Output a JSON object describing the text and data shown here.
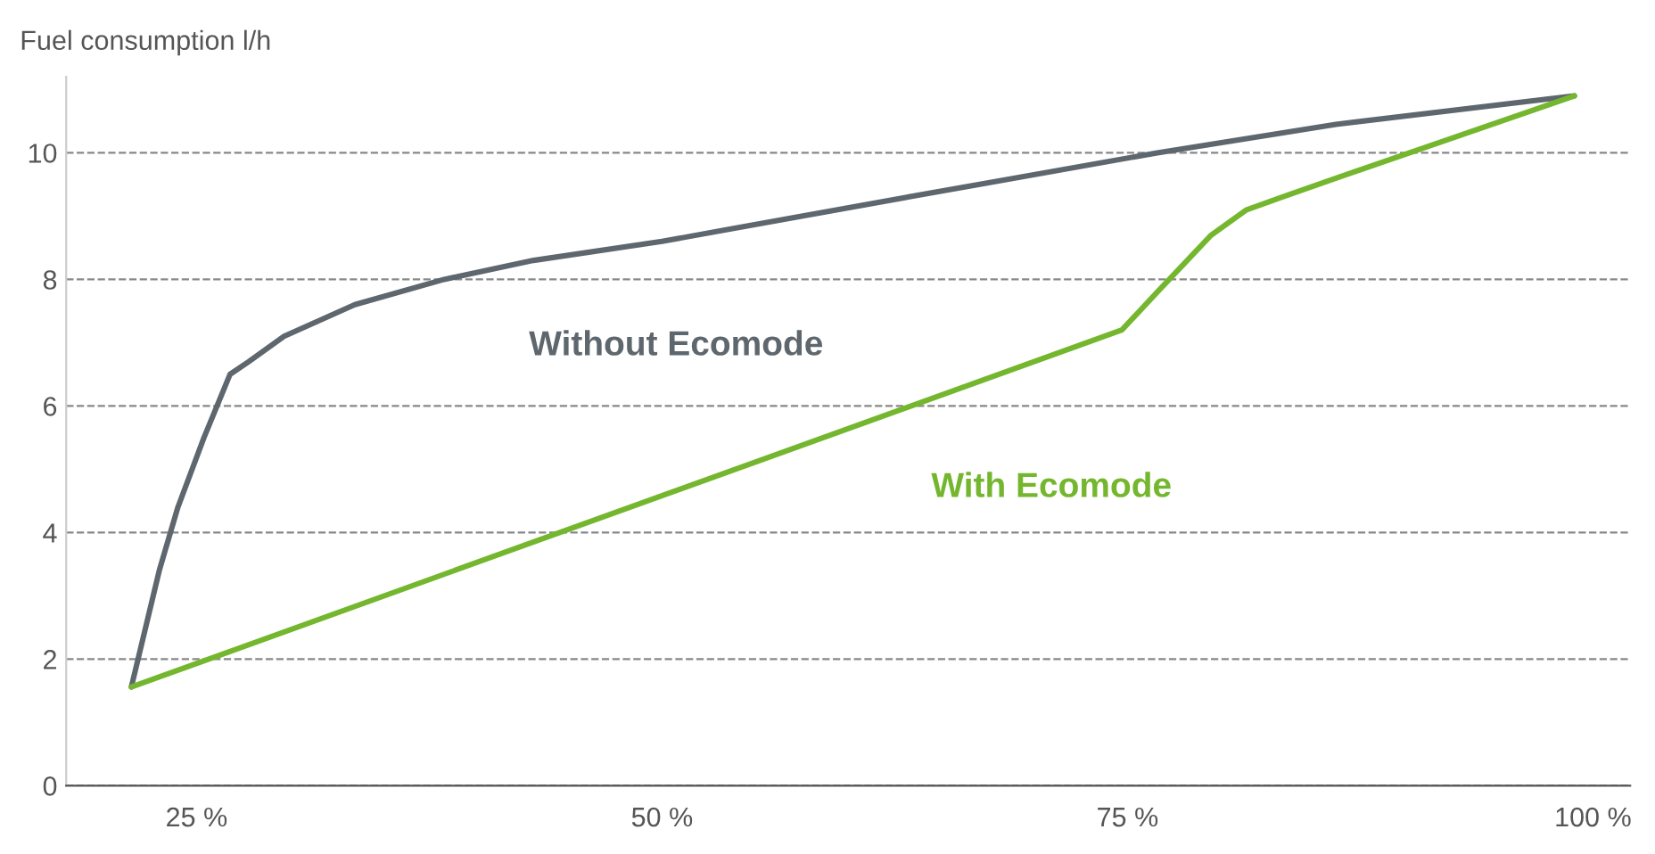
{
  "chart_data": {
    "type": "line",
    "ylabel": "Fuel consumption l/h",
    "series": [
      {
        "name": "Without Ecomode",
        "color": "#5f676e",
        "x": [
          21.5,
          23,
          24,
          25.4,
          26.8,
          27.8,
          29.7,
          33.5,
          38.3,
          43.1,
          50,
          57.5,
          67,
          76.6,
          86.2,
          99
        ],
        "values": [
          1.56,
          3.4,
          4.4,
          5.5,
          6.5,
          6.7,
          7.1,
          7.6,
          8.0,
          8.3,
          8.6,
          9.0,
          9.5,
          10.0,
          10.45,
          10.9
        ]
      },
      {
        "name": "With Ecomode",
        "color": "#74b72e",
        "x": [
          21.5,
          74.7,
          76.6,
          79.5,
          81.4,
          83.3,
          86.2,
          99
        ],
        "values": [
          1.56,
          7.2,
          7.8,
          8.7,
          9.1,
          9.3,
          9.6,
          10.9
        ]
      }
    ],
    "xlim": [
      18,
      102
    ],
    "ylim": [
      0,
      11.2
    ],
    "xticks": [
      {
        "value": 25,
        "label": "25 %"
      },
      {
        "value": 50,
        "label": "50 %"
      },
      {
        "value": 75,
        "label": "75 %"
      },
      {
        "value": 100,
        "label": "100 %"
      }
    ],
    "yticks": [
      0,
      2,
      4,
      6,
      8,
      10
    ],
    "grid": "y",
    "legend": false,
    "marker": "none",
    "line_style": "solid"
  }
}
